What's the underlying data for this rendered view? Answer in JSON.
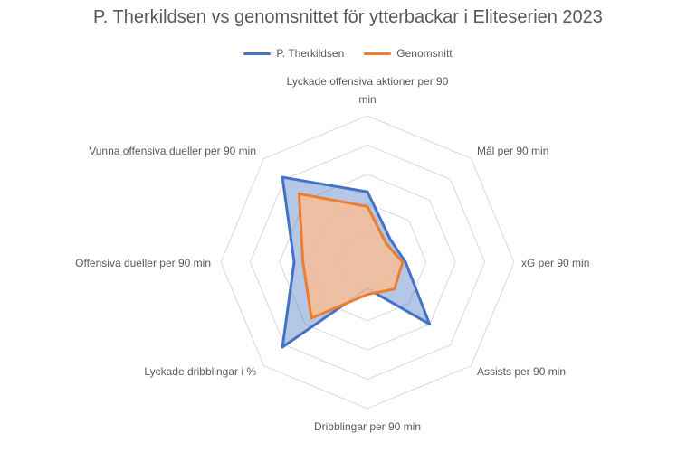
{
  "chart_data": {
    "type": "radar",
    "title": "P. Therkildsen vs genomsnittet för ytterbackar i Eliteserien 2023",
    "axes": [
      "Lyckade offensiva aktioner per 90 min",
      "Mål per 90 min",
      "xG per 90 min",
      "Assists per 90 min",
      "Dribblingar per 90 min",
      "Lyckade dribblingar i %",
      "Offensiva dueller per 90 min",
      "Vunna offensiva dueller per 90 min"
    ],
    "rings": 5,
    "rmax": 5,
    "legend_position": "top",
    "series": [
      {
        "name": "P. Therkildsen",
        "color": "#4472C4",
        "fill": "rgba(68,114,196,0.40)",
        "values": [
          2.4,
          1.1,
          1.3,
          3.0,
          0.9,
          4.1,
          2.5,
          4.1
        ]
      },
      {
        "name": "Genomsnitt",
        "color": "#ED7D31",
        "fill": "rgba(247,190,150,0.85)",
        "values": [
          1.9,
          0.9,
          1.2,
          1.3,
          1.1,
          2.7,
          2.2,
          3.3
        ]
      }
    ]
  }
}
